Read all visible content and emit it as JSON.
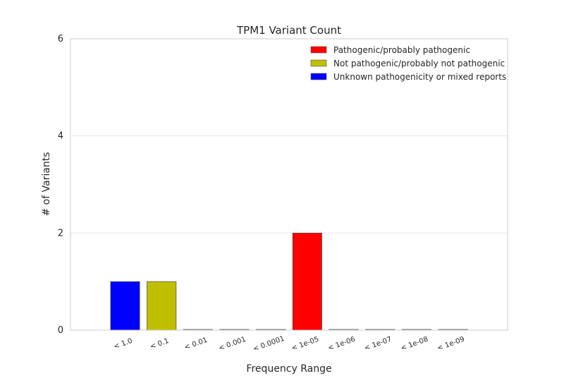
{
  "chart_data": {
    "type": "bar",
    "title": "TPM1 Variant Count",
    "xlabel": "Frequency Range",
    "ylabel": "# of Variants",
    "ylim": [
      0,
      6
    ],
    "yticks": [
      0,
      2,
      4,
      6
    ],
    "grid": true,
    "legend_position": "top-right",
    "categories": [
      "< 1.0",
      "< 0.1",
      "< 0.01",
      "< 0.001",
      "< 0.0001",
      "< 1e-05",
      "< 1e-06",
      "< 1e-07",
      "< 1e-08",
      "< 1e-09"
    ],
    "bars": [
      {
        "category": "< 1.0",
        "value": 1,
        "color": "#0000ff"
      },
      {
        "category": "< 0.1",
        "value": 1,
        "color": "#bfbf00"
      },
      {
        "category": "< 0.01",
        "value": 0,
        "color": "#0000ff"
      },
      {
        "category": "< 0.001",
        "value": 0,
        "color": "#0000ff"
      },
      {
        "category": "< 0.0001",
        "value": 0,
        "color": "#0000ff"
      },
      {
        "category": "< 1e-05",
        "value": 2,
        "color": "#ff0000"
      },
      {
        "category": "< 1e-06",
        "value": 0,
        "color": "#0000ff"
      },
      {
        "category": "< 1e-07",
        "value": 0,
        "color": "#0000ff"
      },
      {
        "category": "< 1e-08",
        "value": 0,
        "color": "#0000ff"
      },
      {
        "category": "< 1e-09",
        "value": 0,
        "color": "#0000ff"
      }
    ],
    "legend": [
      {
        "label": "Pathogenic/probably pathogenic",
        "color": "#ff0000"
      },
      {
        "label": "Not pathogenic/probably not pathogenic",
        "color": "#bfbf00"
      },
      {
        "label": "Unknown pathogenicity or mixed reports",
        "color": "#0000ff"
      }
    ]
  }
}
